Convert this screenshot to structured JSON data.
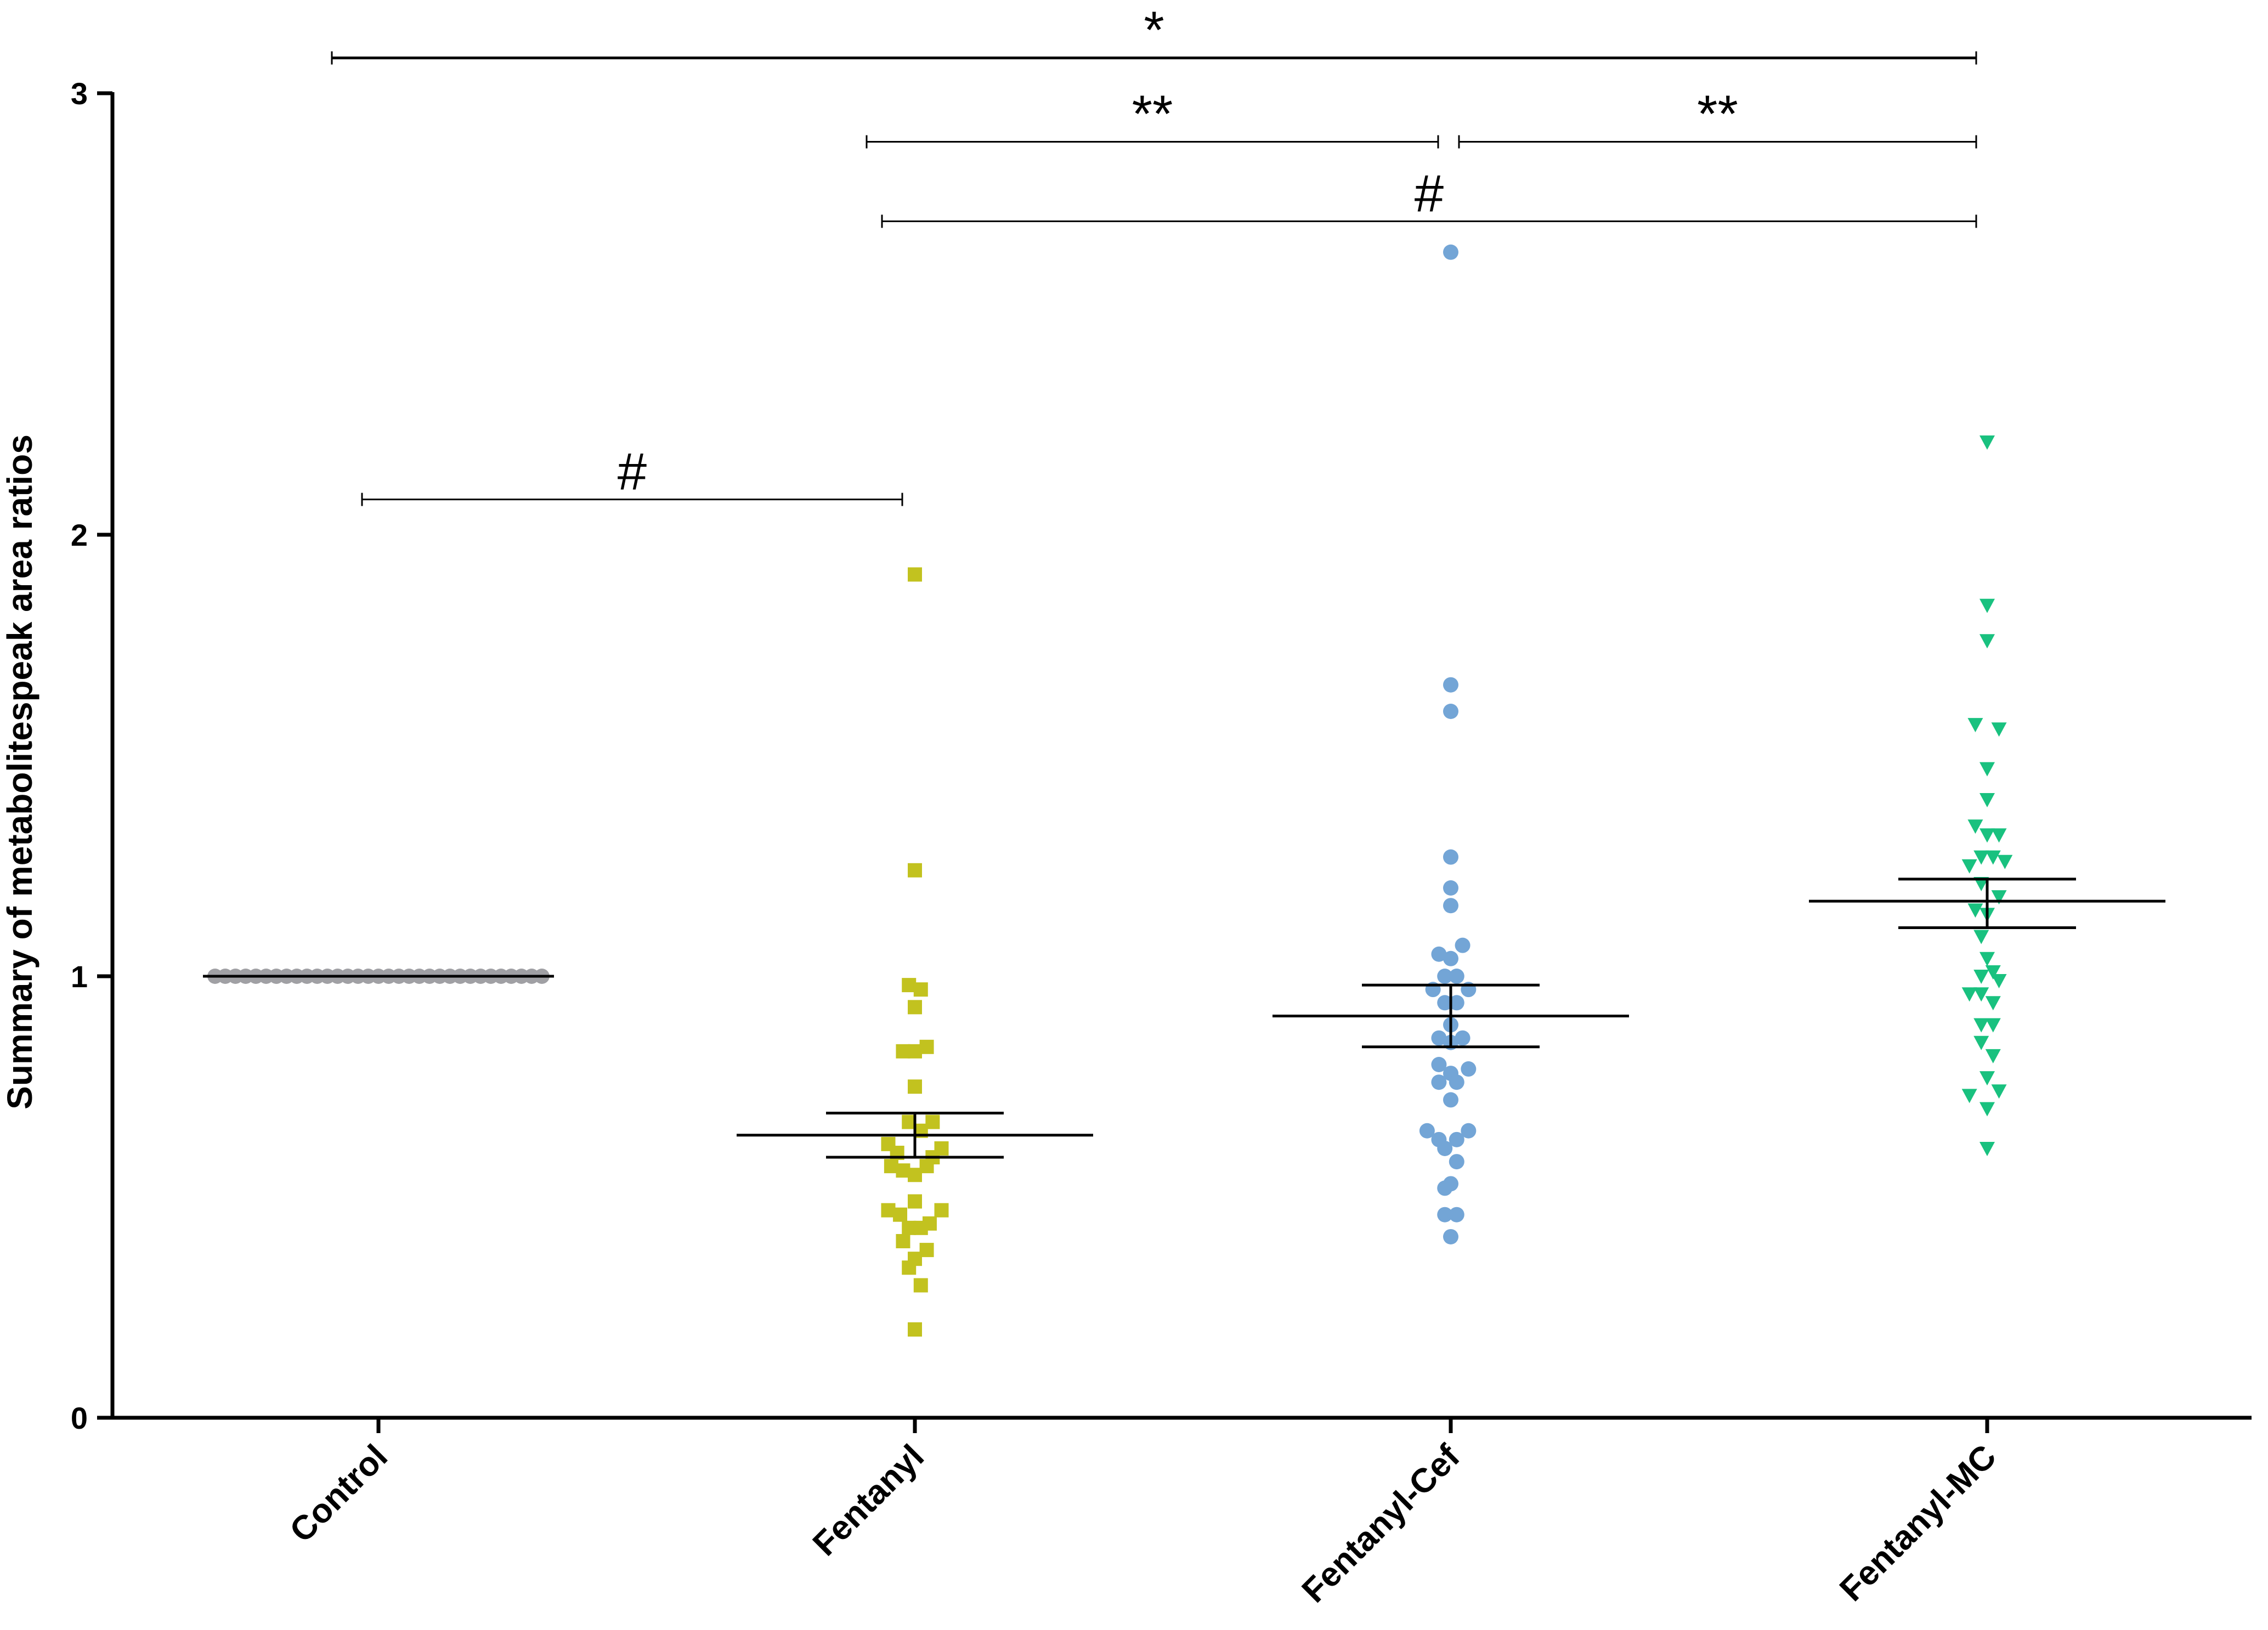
{
  "chart_data": {
    "type": "scatter",
    "title": "",
    "xlabel": "",
    "ylabel": "Summary of metabolitespeak area ratios",
    "ylim": [
      0,
      3
    ],
    "yticks": [
      0,
      1,
      2,
      3
    ],
    "ytick_labels": [
      "0",
      "1",
      "2",
      "3"
    ],
    "categories": [
      "Control",
      "Fentanyl",
      "Fentanyl-Cef",
      "Fentanyl-MC"
    ],
    "series": [
      {
        "name": "Control",
        "marker": "circle",
        "color": "#a0a0a4",
        "mean": 1.0,
        "sem_low": 1.0,
        "sem_high": 1.0,
        "points": [
          {
            "dx": -0.32,
            "y": 1.0
          },
          {
            "dx": -0.3,
            "y": 1.0
          },
          {
            "dx": -0.28,
            "y": 1.0
          },
          {
            "dx": -0.26,
            "y": 1.0
          },
          {
            "dx": -0.24,
            "y": 1.0
          },
          {
            "dx": -0.22,
            "y": 1.0
          },
          {
            "dx": -0.2,
            "y": 1.0
          },
          {
            "dx": -0.18,
            "y": 1.0
          },
          {
            "dx": -0.16,
            "y": 1.0
          },
          {
            "dx": -0.14,
            "y": 1.0
          },
          {
            "dx": -0.12,
            "y": 1.0
          },
          {
            "dx": -0.1,
            "y": 1.0
          },
          {
            "dx": -0.08,
            "y": 1.0
          },
          {
            "dx": -0.06,
            "y": 1.0
          },
          {
            "dx": -0.04,
            "y": 1.0
          },
          {
            "dx": -0.02,
            "y": 1.0
          },
          {
            "dx": 0.0,
            "y": 1.0
          },
          {
            "dx": 0.02,
            "y": 1.0
          },
          {
            "dx": 0.04,
            "y": 1.0
          },
          {
            "dx": 0.06,
            "y": 1.0
          },
          {
            "dx": 0.08,
            "y": 1.0
          },
          {
            "dx": 0.1,
            "y": 1.0
          },
          {
            "dx": 0.12,
            "y": 1.0
          },
          {
            "dx": 0.14,
            "y": 1.0
          },
          {
            "dx": 0.16,
            "y": 1.0
          },
          {
            "dx": 0.18,
            "y": 1.0
          },
          {
            "dx": 0.2,
            "y": 1.0
          },
          {
            "dx": 0.22,
            "y": 1.0
          },
          {
            "dx": 0.24,
            "y": 1.0
          },
          {
            "dx": 0.26,
            "y": 1.0
          },
          {
            "dx": 0.28,
            "y": 1.0
          },
          {
            "dx": 0.3,
            "y": 1.0
          },
          {
            "dx": 0.32,
            "y": 1.0
          }
        ]
      },
      {
        "name": "Fentanyl",
        "marker": "square",
        "color": "#c2c21f",
        "mean": 0.64,
        "sem_low": 0.59,
        "sem_high": 0.69,
        "points": [
          {
            "dx": 0.0,
            "y": 1.91
          },
          {
            "dx": 0.0,
            "y": 1.24
          },
          {
            "dx": -0.02,
            "y": 0.98
          },
          {
            "dx": 0.02,
            "y": 0.97
          },
          {
            "dx": 0.0,
            "y": 0.93
          },
          {
            "dx": -0.04,
            "y": 0.83
          },
          {
            "dx": 0.0,
            "y": 0.83
          },
          {
            "dx": 0.04,
            "y": 0.84
          },
          {
            "dx": 0.0,
            "y": 0.75
          },
          {
            "dx": -0.02,
            "y": 0.67
          },
          {
            "dx": 0.06,
            "y": 0.67
          },
          {
            "dx": 0.02,
            "y": 0.65
          },
          {
            "dx": -0.09,
            "y": 0.62
          },
          {
            "dx": 0.09,
            "y": 0.61
          },
          {
            "dx": -0.06,
            "y": 0.6
          },
          {
            "dx": 0.06,
            "y": 0.59
          },
          {
            "dx": -0.08,
            "y": 0.57
          },
          {
            "dx": 0.04,
            "y": 0.57
          },
          {
            "dx": -0.04,
            "y": 0.56
          },
          {
            "dx": 0.0,
            "y": 0.55
          },
          {
            "dx": 0.0,
            "y": 0.49
          },
          {
            "dx": -0.09,
            "y": 0.47
          },
          {
            "dx": 0.09,
            "y": 0.47
          },
          {
            "dx": -0.05,
            "y": 0.46
          },
          {
            "dx": 0.05,
            "y": 0.44
          },
          {
            "dx": -0.02,
            "y": 0.43
          },
          {
            "dx": 0.02,
            "y": 0.43
          },
          {
            "dx": -0.04,
            "y": 0.4
          },
          {
            "dx": 0.04,
            "y": 0.38
          },
          {
            "dx": 0.0,
            "y": 0.36
          },
          {
            "dx": -0.02,
            "y": 0.34
          },
          {
            "dx": 0.02,
            "y": 0.3
          },
          {
            "dx": 0.0,
            "y": 0.2
          }
        ]
      },
      {
        "name": "Fentanyl-Cef",
        "marker": "circle",
        "color": "#73a5d6",
        "mean": 0.91,
        "sem_low": 0.84,
        "sem_high": 0.98,
        "points": [
          {
            "dx": 0.0,
            "y": 2.64
          },
          {
            "dx": 0.0,
            "y": 1.66
          },
          {
            "dx": 0.0,
            "y": 1.6
          },
          {
            "dx": 0.0,
            "y": 1.27
          },
          {
            "dx": 0.0,
            "y": 1.2
          },
          {
            "dx": 0.0,
            "y": 1.16
          },
          {
            "dx": 0.04,
            "y": 1.07
          },
          {
            "dx": -0.04,
            "y": 1.05
          },
          {
            "dx": 0.0,
            "y": 1.04
          },
          {
            "dx": -0.02,
            "y": 1.0
          },
          {
            "dx": 0.02,
            "y": 1.0
          },
          {
            "dx": -0.06,
            "y": 0.97
          },
          {
            "dx": 0.06,
            "y": 0.97
          },
          {
            "dx": -0.02,
            "y": 0.94
          },
          {
            "dx": 0.02,
            "y": 0.94
          },
          {
            "dx": 0.0,
            "y": 0.89
          },
          {
            "dx": -0.04,
            "y": 0.86
          },
          {
            "dx": 0.04,
            "y": 0.86
          },
          {
            "dx": 0.0,
            "y": 0.85
          },
          {
            "dx": -0.04,
            "y": 0.8
          },
          {
            "dx": 0.06,
            "y": 0.79
          },
          {
            "dx": 0.0,
            "y": 0.78
          },
          {
            "dx": -0.04,
            "y": 0.76
          },
          {
            "dx": 0.02,
            "y": 0.76
          },
          {
            "dx": 0.0,
            "y": 0.72
          },
          {
            "dx": -0.08,
            "y": 0.65
          },
          {
            "dx": 0.06,
            "y": 0.65
          },
          {
            "dx": -0.04,
            "y": 0.63
          },
          {
            "dx": 0.02,
            "y": 0.63
          },
          {
            "dx": -0.02,
            "y": 0.61
          },
          {
            "dx": 0.02,
            "y": 0.58
          },
          {
            "dx": 0.0,
            "y": 0.53
          },
          {
            "dx": -0.02,
            "y": 0.52
          },
          {
            "dx": -0.02,
            "y": 0.46
          },
          {
            "dx": 0.02,
            "y": 0.46
          },
          {
            "dx": 0.0,
            "y": 0.41
          }
        ]
      },
      {
        "name": "Fentanyl-MC",
        "marker": "triangle-down",
        "color": "#19c17f",
        "mean": 1.17,
        "sem_low": 1.11,
        "sem_high": 1.22,
        "points": [
          {
            "dx": 0.0,
            "y": 2.21
          },
          {
            "dx": 0.0,
            "y": 1.84
          },
          {
            "dx": 0.0,
            "y": 1.76
          },
          {
            "dx": -0.04,
            "y": 1.57
          },
          {
            "dx": 0.04,
            "y": 1.56
          },
          {
            "dx": 0.0,
            "y": 1.47
          },
          {
            "dx": 0.0,
            "y": 1.4
          },
          {
            "dx": -0.04,
            "y": 1.34
          },
          {
            "dx": 0.0,
            "y": 1.32
          },
          {
            "dx": 0.04,
            "y": 1.32
          },
          {
            "dx": -0.02,
            "y": 1.27
          },
          {
            "dx": 0.02,
            "y": 1.27
          },
          {
            "dx": -0.06,
            "y": 1.25
          },
          {
            "dx": 0.06,
            "y": 1.26
          },
          {
            "dx": -0.02,
            "y": 1.21
          },
          {
            "dx": 0.04,
            "y": 1.18
          },
          {
            "dx": -0.04,
            "y": 1.15
          },
          {
            "dx": 0.0,
            "y": 1.14
          },
          {
            "dx": -0.02,
            "y": 1.09
          },
          {
            "dx": 0.0,
            "y": 1.04
          },
          {
            "dx": -0.02,
            "y": 1.0
          },
          {
            "dx": 0.02,
            "y": 1.01
          },
          {
            "dx": 0.04,
            "y": 0.99
          },
          {
            "dx": -0.06,
            "y": 0.96
          },
          {
            "dx": -0.02,
            "y": 0.96
          },
          {
            "dx": 0.02,
            "y": 0.94
          },
          {
            "dx": -0.02,
            "y": 0.89
          },
          {
            "dx": 0.02,
            "y": 0.89
          },
          {
            "dx": -0.02,
            "y": 0.85
          },
          {
            "dx": 0.02,
            "y": 0.82
          },
          {
            "dx": 0.0,
            "y": 0.77
          },
          {
            "dx": -0.06,
            "y": 0.73
          },
          {
            "dx": 0.04,
            "y": 0.74
          },
          {
            "dx": 0.0,
            "y": 0.7
          },
          {
            "dx": 0.0,
            "y": 0.61
          }
        ]
      }
    ],
    "significance": [
      {
        "label": "*",
        "from": "Control",
        "to": "Fentanyl-MC",
        "y": 3.08
      },
      {
        "label": "**",
        "from": "Fentanyl",
        "to": "Fentanyl-Cef",
        "y": 2.89
      },
      {
        "label": "**",
        "from": "Fentanyl-Cef",
        "to": "Fentanyl-MC",
        "y": 2.89
      },
      {
        "label": "#",
        "from": "Fentanyl",
        "to": "Fentanyl-MC",
        "y": 2.71
      },
      {
        "label": "#",
        "from": "Control",
        "to": "Fentanyl",
        "y": 2.08
      }
    ],
    "grid": false,
    "legend": "none"
  }
}
